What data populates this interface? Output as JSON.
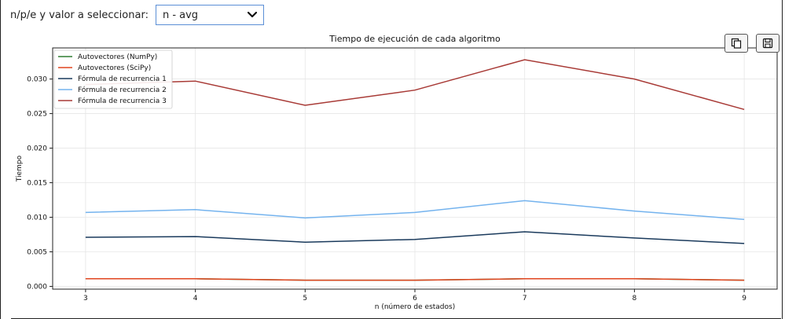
{
  "control": {
    "label": "n/p/e y valor a seleccionar:",
    "selected": "n - avg"
  },
  "toolbar": {
    "copy_icon": "copy-icon",
    "save_icon": "floppy-disk-icon"
  },
  "chart_data": {
    "type": "line",
    "title": "Tiempo de ejecución de cada algoritmo",
    "xlabel": "n (número de estados)",
    "ylabel": "Tiempo",
    "x": [
      3,
      4,
      5,
      6,
      7,
      8,
      9
    ],
    "xlim": [
      2.7,
      9.3
    ],
    "ylim": [
      -0.0004,
      0.0345
    ],
    "yticks": [
      "0.000",
      "0.005",
      "0.010",
      "0.015",
      "0.020",
      "0.025",
      "0.030"
    ],
    "grid": true,
    "legend_position": "top-left",
    "series": [
      {
        "name": "Autovectores (NumPy)",
        "color": "#2e7d32",
        "values": [
          0.0011,
          0.0011,
          0.0009,
          0.0009,
          0.0011,
          0.0011,
          0.0009
        ]
      },
      {
        "name": "Autovectores (SciPy)",
        "color": "#e0451f",
        "values": [
          0.0011,
          0.0011,
          0.0009,
          0.0009,
          0.0011,
          0.0011,
          0.0009
        ]
      },
      {
        "name": "Fórmula de recurrencia 1",
        "color": "#1a3a5c",
        "values": [
          0.0071,
          0.0072,
          0.0064,
          0.0068,
          0.0079,
          0.007,
          0.0062
        ]
      },
      {
        "name": "Fórmula de recurrencia 2",
        "color": "#74b3ee",
        "values": [
          0.0107,
          0.0111,
          0.0099,
          0.0107,
          0.0124,
          0.0109,
          0.0097
        ]
      },
      {
        "name": "Fórmula de recurrencia 3",
        "color": "#a83a36",
        "values": [
          0.0292,
          0.0297,
          0.0262,
          0.0284,
          0.0328,
          0.03,
          0.0256
        ]
      }
    ]
  }
}
